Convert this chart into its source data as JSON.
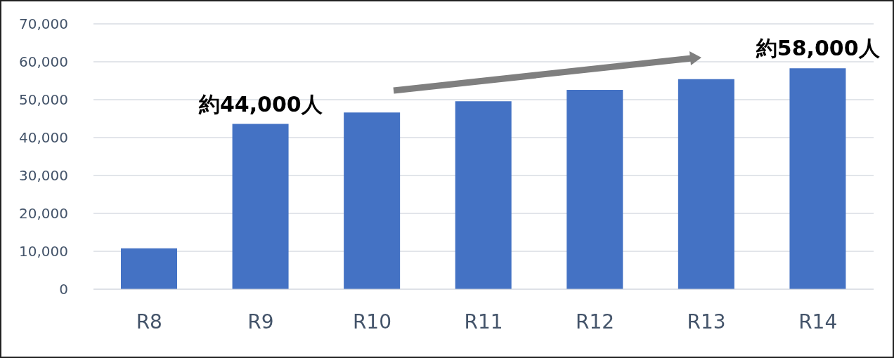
{
  "chart_data": {
    "type": "bar",
    "categories": [
      "R8",
      "R9",
      "R10",
      "R11",
      "R12",
      "R13",
      "R14"
    ],
    "values": [
      10800,
      43600,
      46600,
      49600,
      52600,
      55400,
      58300
    ],
    "color": "#4472c4",
    "ylim": [
      0,
      70000
    ],
    "yticks": [
      0,
      {
        "value": 10000,
        "label": "10,000"
      },
      {
        "value": 20000,
        "label": "20,000"
      },
      {
        "value": 30000,
        "label": "30,000"
      },
      {
        "value": 40000,
        "label": "40,000"
      },
      {
        "value": 50000,
        "label": "50,000"
      },
      {
        "value": 60000,
        "label": "60,000"
      },
      {
        "value": 70000,
        "label": "70,000"
      }
    ],
    "grid": "y",
    "annotations": [
      {
        "text": "約44,000人",
        "x": "R9",
        "y": 43600
      },
      {
        "text": "約58,000人",
        "x": "R14",
        "y": 58300
      }
    ]
  }
}
